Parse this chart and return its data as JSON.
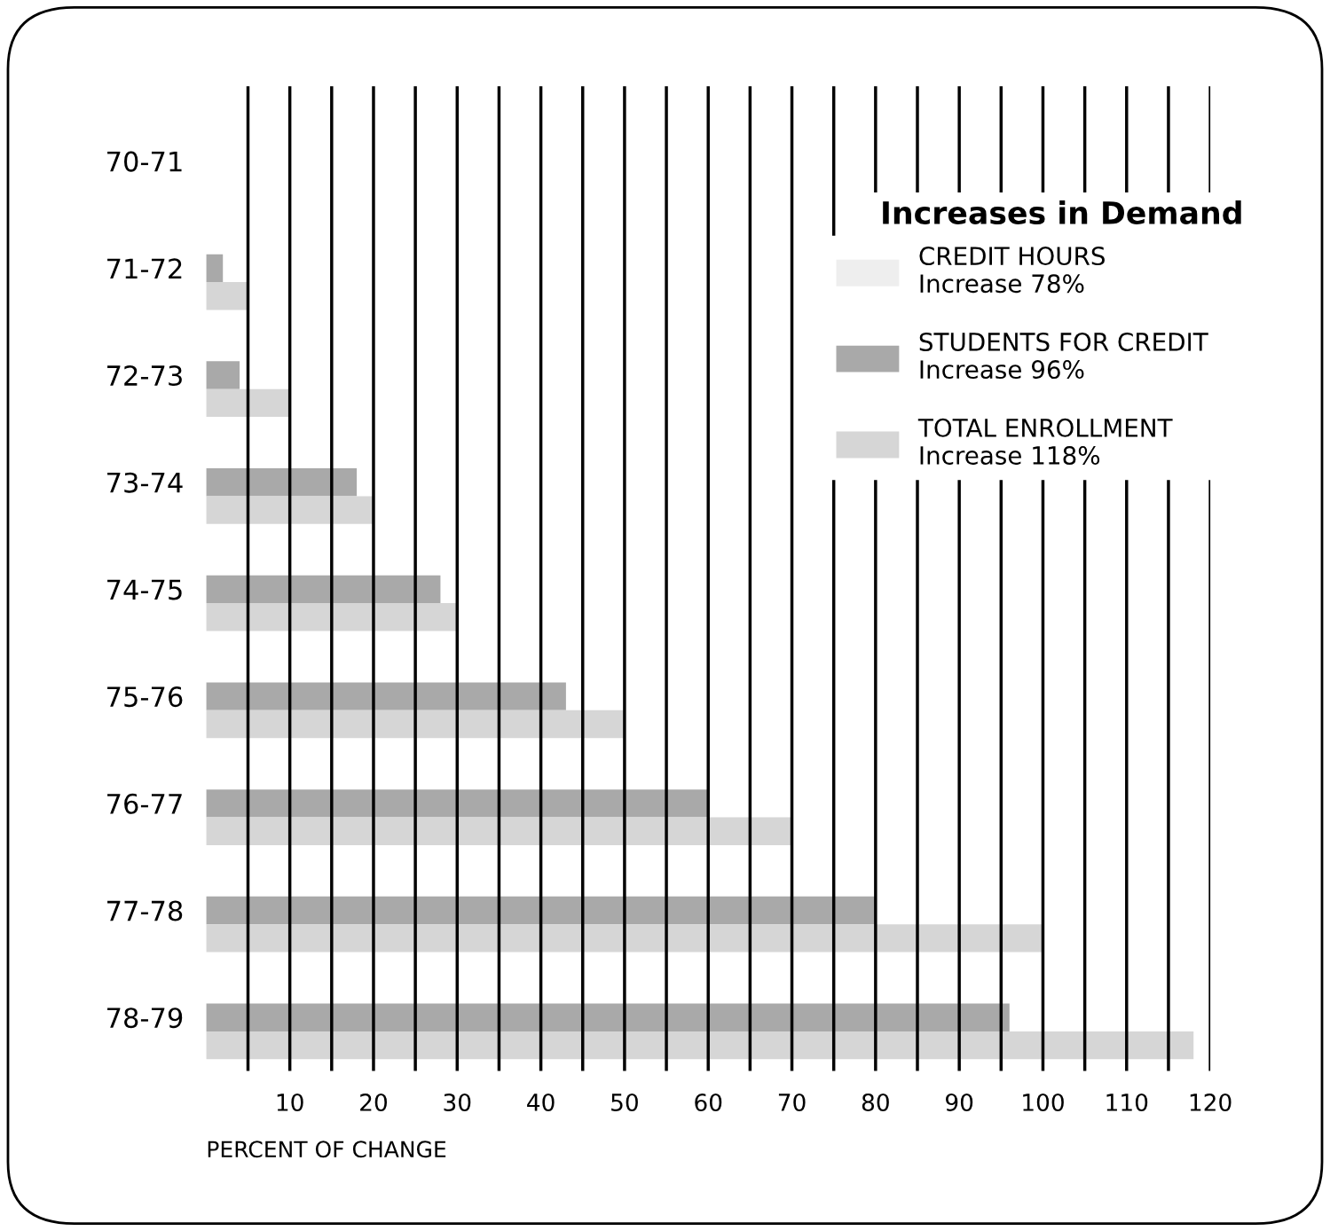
{
  "chart_data": {
    "type": "bar",
    "orientation": "horizontal",
    "title": "Increases in Demand",
    "categories": [
      "70-71",
      "71-72",
      "72-73",
      "73-74",
      "74-75",
      "75-76",
      "76-77",
      "77-78",
      "78-79"
    ],
    "series": [
      {
        "name": "CREDIT HOURS\nIncrease 78%",
        "color": "#eeeeee",
        "values": [
          null,
          null,
          null,
          null,
          null,
          null,
          null,
          null,
          null
        ]
      },
      {
        "name": "STUDENTS FOR CREDIT\nIncrease 96%",
        "color": "#a9a9a9",
        "values": [
          0,
          2,
          4,
          18,
          28,
          43,
          60,
          80,
          96
        ]
      },
      {
        "name": "TOTAL ENROLLMENT\nIncrease 118%",
        "color": "#d6d6d6",
        "values": [
          0,
          5,
          10,
          20,
          30,
          50,
          70,
          100,
          118
        ]
      }
    ],
    "xlabel": "PERCENT OF CHANGE",
    "xlim": [
      0,
      120
    ],
    "xticks": [
      {
        "value": 5,
        "label": null
      },
      10,
      {
        "value": 15,
        "label": null
      },
      20,
      {
        "value": 25,
        "label": null
      },
      30,
      {
        "value": 35,
        "label": null
      },
      40,
      {
        "value": 45,
        "label": null
      },
      50,
      {
        "value": 55,
        "label": null
      },
      60,
      {
        "value": 65,
        "label": null
      },
      70,
      {
        "value": 75,
        "label": null
      },
      80,
      {
        "value": 85,
        "label": null
      },
      90,
      {
        "value": 95,
        "label": null
      },
      100,
      {
        "value": 105,
        "label": null
      },
      110,
      {
        "value": 115,
        "label": null
      },
      120
    ],
    "grid": "x",
    "legend": "top right"
  }
}
